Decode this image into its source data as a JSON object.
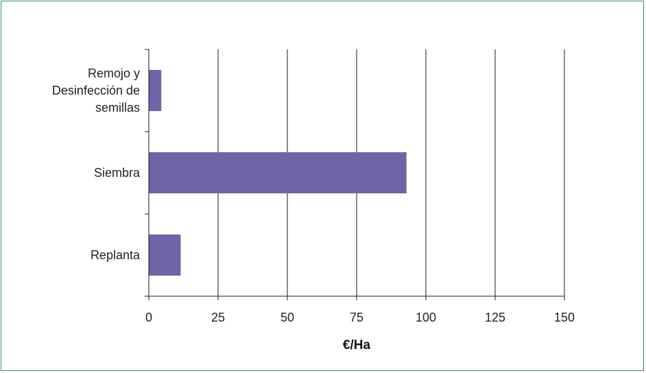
{
  "chart_data": {
    "type": "bar",
    "orientation": "horizontal",
    "categories": [
      [
        "Remojo y",
        "Desinfección de",
        "semillas"
      ],
      [
        "Siembra"
      ],
      [
        "Replanta"
      ]
    ],
    "values": [
      4.5,
      93,
      11.5
    ],
    "xlabel": "€/Ha",
    "ylabel": "",
    "xlim": [
      0,
      150
    ],
    "xticks": [
      "0",
      "25",
      "50",
      "75",
      "100",
      "125",
      "150"
    ],
    "grid": "vertical",
    "bar_color": "#6f64a8"
  }
}
